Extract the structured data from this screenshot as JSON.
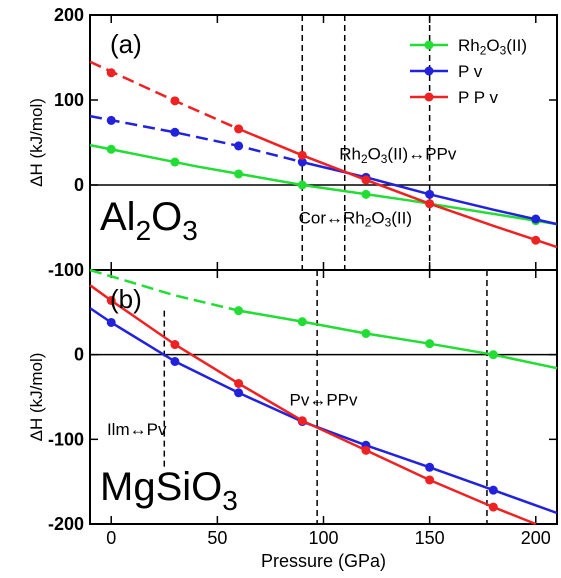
{
  "chart_data": [
    {
      "id": "a",
      "type": "line",
      "panel_label": "(a)",
      "compound": {
        "base": "Al",
        "sub1": "2",
        "mid": "O",
        "sub2": "3"
      },
      "ylabel": "ΔH (kJ/mol)",
      "xlim": [
        -10,
        210
      ],
      "ylim": [
        -100,
        200
      ],
      "yticks": [
        -100,
        0,
        100,
        200
      ],
      "ytick_labels": [
        "-100",
        "0",
        "100",
        "200"
      ],
      "hline": 0,
      "vlines": [
        90,
        110,
        150
      ],
      "series": [
        {
          "name": "Rh2O3(II)",
          "color": "#22dd33",
          "points": [
            [
              0,
              42
            ],
            [
              30,
              27
            ],
            [
              60,
              13
            ],
            [
              90,
              0
            ],
            [
              120,
              -11
            ],
            [
              150,
              -22
            ],
            [
              200,
              -42
            ]
          ],
          "line": [
            [
              -10,
              47
            ],
            [
              40,
              22
            ],
            [
              90,
              0
            ],
            [
              140,
              -18
            ],
            [
              210,
              -46
            ]
          ],
          "dashed_until": null
        },
        {
          "name": "Pv",
          "color": "#2222dd",
          "points": [
            [
              0,
              76
            ],
            [
              30,
              62
            ],
            [
              60,
              46
            ],
            [
              90,
              27
            ],
            [
              120,
              9
            ],
            [
              150,
              -11
            ],
            [
              200,
              -40
            ]
          ],
          "line": [
            [
              -10,
              81
            ],
            [
              30,
              62
            ],
            [
              60,
              46
            ],
            [
              90,
              27
            ],
            [
              120,
              9
            ],
            [
              150,
              -11
            ],
            [
              180,
              -29
            ],
            [
              210,
              -46
            ]
          ],
          "dashed_until": 90
        },
        {
          "name": "PPv",
          "color": "#ee2222",
          "points": [
            [
              0,
              132
            ],
            [
              30,
              99
            ],
            [
              60,
              66
            ],
            [
              90,
              35
            ],
            [
              120,
              6
            ],
            [
              150,
              -22
            ],
            [
              200,
              -65
            ]
          ],
          "line": [
            [
              -10,
              145
            ],
            [
              30,
              99
            ],
            [
              60,
              66
            ],
            [
              90,
              35
            ],
            [
              120,
              6
            ],
            [
              150,
              -22
            ],
            [
              180,
              -48
            ],
            [
              210,
              -73
            ]
          ],
          "dashed_until": 60
        }
      ],
      "annotations": [
        {
          "text": "Rh2O3(II)↔PPv",
          "x": 135,
          "y": 30
        },
        {
          "text": "Cor↔Rh2O3(II)",
          "x": 115,
          "y": -45
        }
      ],
      "legend": {
        "placement": "top-right",
        "entries": [
          "Rh2O3(II)",
          "Pv",
          "PPv"
        ]
      }
    },
    {
      "id": "b",
      "type": "line",
      "panel_label": "(b)",
      "compound": {
        "base": "MgSiO",
        "sub1": "3"
      },
      "ylabel": "ΔH (kJ/mol)",
      "xlabel": "Pressure (GPa)",
      "xlim": [
        -10,
        210
      ],
      "ylim": [
        -200,
        100
      ],
      "xticks": [
        0,
        50,
        100,
        150,
        200
      ],
      "xtick_labels": [
        "0",
        "50",
        "100",
        "150",
        "200"
      ],
      "yticks": [
        -200,
        -100,
        0
      ],
      "ytick_labels": [
        "-200",
        "-100",
        "0"
      ],
      "hline": 0,
      "vlines": [
        25,
        97,
        177
      ],
      "series": [
        {
          "name": "Rh2O3(II)",
          "color": "#22dd33",
          "points": [
            [
              60,
              52
            ],
            [
              90,
              39
            ],
            [
              120,
              25
            ],
            [
              150,
              13
            ],
            [
              180,
              0
            ]
          ],
          "line": [
            [
              -10,
              100
            ],
            [
              30,
              70
            ],
            [
              60,
              52
            ],
            [
              90,
              39
            ],
            [
              120,
              25
            ],
            [
              150,
              13
            ],
            [
              180,
              0
            ],
            [
              210,
              -16
            ]
          ],
          "dashed_until": 60
        },
        {
          "name": "Pv",
          "color": "#2222dd",
          "points": [
            [
              0,
              38
            ],
            [
              30,
              -8
            ],
            [
              60,
              -45
            ],
            [
              90,
              -79
            ],
            [
              120,
              -107
            ],
            [
              150,
              -133
            ],
            [
              180,
              -160
            ]
          ],
          "line": [
            [
              -10,
              55
            ],
            [
              0,
              38
            ],
            [
              30,
              -8
            ],
            [
              60,
              -45
            ],
            [
              90,
              -79
            ],
            [
              120,
              -107
            ],
            [
              150,
              -133
            ],
            [
              180,
              -160
            ],
            [
              210,
              -187
            ]
          ],
          "dashed_until": null
        },
        {
          "name": "PPv",
          "color": "#ee2222",
          "points": [
            [
              0,
              64
            ],
            [
              30,
              12
            ],
            [
              60,
              -34
            ],
            [
              90,
              -78
            ],
            [
              120,
              -113
            ],
            [
              150,
              -148
            ],
            [
              180,
              -180
            ]
          ],
          "line": [
            [
              -10,
              82
            ],
            [
              0,
              64
            ],
            [
              30,
              12
            ],
            [
              60,
              -34
            ],
            [
              90,
              -78
            ],
            [
              120,
              -113
            ],
            [
              150,
              -148
            ],
            [
              180,
              -180
            ],
            [
              200,
              -200
            ]
          ],
          "dashed_until": null
        }
      ],
      "annotations": [
        {
          "text": "Ilm↔Pv",
          "x": 12,
          "y": -95
        },
        {
          "text": "Pv↔PPv",
          "x": 100,
          "y": -60
        }
      ]
    }
  ]
}
